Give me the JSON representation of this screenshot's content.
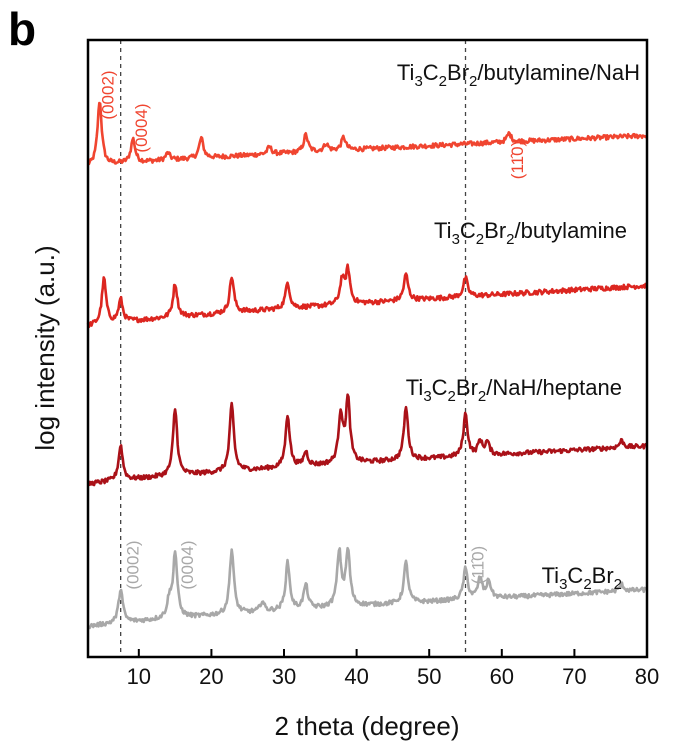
{
  "panel_label": "b",
  "chart_data": {
    "type": "line",
    "title": "",
    "xlabel": "2 theta (degree)",
    "ylabel": "log intensity (a.u.)",
    "xlim": [
      3,
      80
    ],
    "x_ticks": [
      10,
      20,
      30,
      40,
      50,
      60,
      70,
      80
    ],
    "y_ticks": "none",
    "grid": false,
    "reference_lines_x": [
      7.5,
      55
    ],
    "series": [
      {
        "name": "Ti3C2Br2/butylamine/NaH",
        "label_parts": [
          "Ti",
          "3",
          "C",
          "2",
          "Br",
          "2",
          "/butylamine/NaH"
        ],
        "color": "#f04530",
        "baseline": [
          0.85,
          0.45
        ],
        "peaks": [
          [
            4.6,
            0.9
          ],
          [
            9.2,
            0.33
          ],
          [
            14.0,
            0.1
          ],
          [
            18.6,
            0.28
          ],
          [
            28.0,
            0.1
          ],
          [
            33.0,
            0.24
          ],
          [
            35.8,
            0.1
          ],
          [
            38.2,
            0.18
          ],
          [
            61.0,
            0.12
          ]
        ],
        "annotations": [
          {
            "text": "(0002)",
            "x": 4.6,
            "color": "#f04530"
          },
          {
            "text": "(0004)",
            "x": 9.2,
            "color": "#f04530"
          },
          {
            "text": "(11Ť2Ť0)",
            "display": "(11̂0)",
            "x": 61.0,
            "color": "#f04530"
          }
        ]
      },
      {
        "name": "Ti3C2Br2/butylamine",
        "label_parts": [
          "Ti",
          "3",
          "C",
          "2",
          "Br",
          "2",
          "/butylamine"
        ],
        "color": "#dc2620",
        "baseline": [
          0.9,
          0.4
        ],
        "peaks": [
          [
            5.2,
            0.6
          ],
          [
            7.5,
            0.3
          ],
          [
            15.0,
            0.45
          ],
          [
            22.8,
            0.48
          ],
          [
            30.5,
            0.35
          ],
          [
            38.0,
            0.32
          ],
          [
            38.8,
            0.45
          ],
          [
            46.8,
            0.35
          ],
          [
            55.0,
            0.25
          ]
        ],
        "annotations": []
      },
      {
        "name": "Ti3C2Br2/NaH/heptane",
        "label_parts": [
          "Ti",
          "3",
          "C",
          "2",
          "Br",
          "2",
          "/NaH/heptane"
        ],
        "color": "#aa1118",
        "baseline": [
          0.85,
          0.35
        ],
        "peaks": [
          [
            7.5,
            0.5
          ],
          [
            15.0,
            0.95
          ],
          [
            22.8,
            0.95
          ],
          [
            30.5,
            0.75
          ],
          [
            33.0,
            0.2
          ],
          [
            37.8,
            0.7
          ],
          [
            38.8,
            0.9
          ],
          [
            46.8,
            0.75
          ],
          [
            55.0,
            0.6
          ],
          [
            57.0,
            0.2
          ],
          [
            58.0,
            0.18
          ],
          [
            76.5,
            0.1
          ]
        ],
        "annotations": []
      },
      {
        "name": "Ti3C2Br2",
        "label_parts": [
          "Ti",
          "3",
          "C",
          "2",
          "Br",
          "2",
          ""
        ],
        "color": "#a8a8a8",
        "baseline": [
          0.8,
          0.3
        ],
        "peaks": [
          [
            7.5,
            0.5
          ],
          [
            14.2,
            0.25
          ],
          [
            15.0,
            0.95
          ],
          [
            22.8,
            0.95
          ],
          [
            27.0,
            0.15
          ],
          [
            30.5,
            0.7
          ],
          [
            33.0,
            0.35
          ],
          [
            37.6,
            0.8
          ],
          [
            38.8,
            0.8
          ],
          [
            46.8,
            0.6
          ],
          [
            55.0,
            0.45
          ],
          [
            57.0,
            0.3
          ],
          [
            58.2,
            0.25
          ],
          [
            76.5,
            0.1
          ]
        ],
        "annotations": [
          {
            "text": "(0002)",
            "x": 7.5,
            "color": "#a8a8a8"
          },
          {
            "text": "(0004)",
            "x": 15.0,
            "color": "#a8a8a8"
          },
          {
            "text": "(11̂0)",
            "x": 55.0,
            "color": "#a8a8a8"
          }
        ]
      }
    ]
  }
}
